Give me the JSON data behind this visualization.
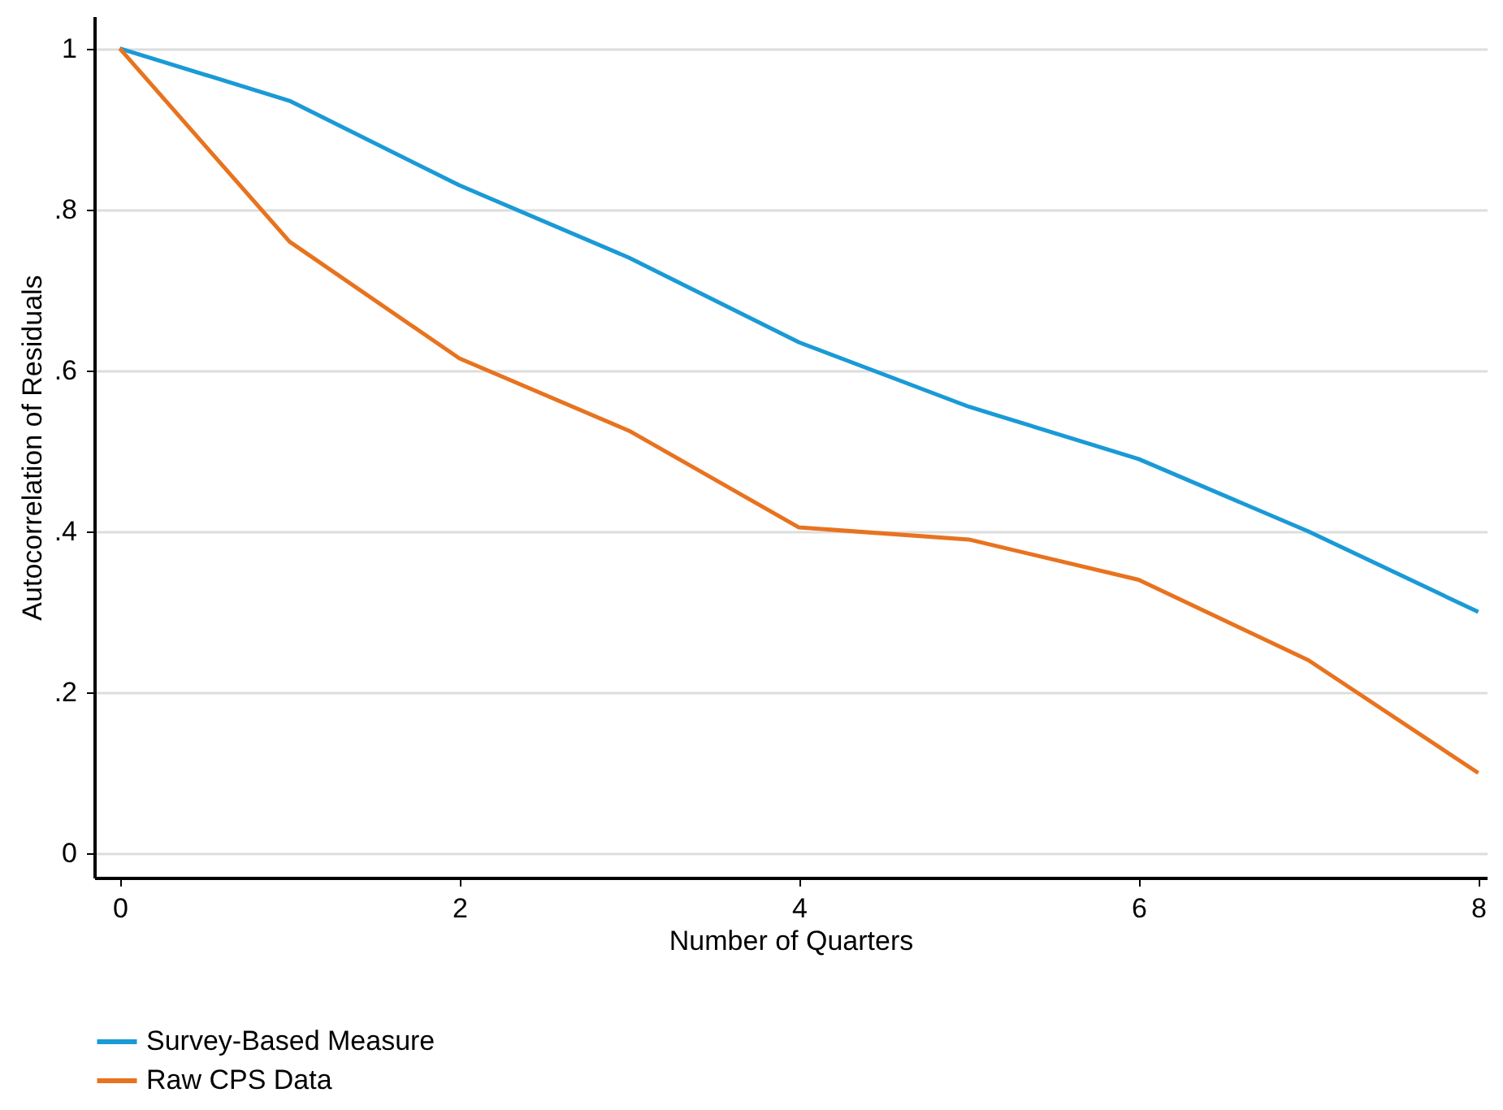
{
  "chart_data": {
    "type": "line",
    "xlabel": "Number of Quarters",
    "ylabel": "Autocorrelation of Residuals",
    "x": [
      0,
      1,
      2,
      3,
      4,
      5,
      6,
      7,
      8
    ],
    "series": [
      {
        "name": "Survey-Based Measure",
        "color": "#1a9ad6",
        "values": [
          1.0,
          0.935,
          0.83,
          0.74,
          0.635,
          0.555,
          0.49,
          0.4,
          0.3
        ]
      },
      {
        "name": "Raw CPS Data",
        "color": "#e8731f",
        "values": [
          1.0,
          0.76,
          0.615,
          0.525,
          0.405,
          0.39,
          0.34,
          0.24,
          0.1
        ]
      }
    ],
    "xlim": [
      -0.15,
      8.05
    ],
    "ylim": [
      -0.03,
      1.04
    ],
    "xticks": [
      0,
      2,
      4,
      6,
      8
    ],
    "yticks": [
      {
        "value": 0,
        "label": "0"
      },
      {
        "value": 0.2,
        "label": ".2"
      },
      {
        "value": 0.4,
        "label": ".4"
      },
      {
        "value": 0.6,
        "label": ".6"
      },
      {
        "value": 0.8,
        "label": ".8"
      },
      {
        "value": 1,
        "label": "1"
      }
    ],
    "grid": "y",
    "legend": "bottom",
    "marker": "none",
    "line_style": "solid"
  }
}
